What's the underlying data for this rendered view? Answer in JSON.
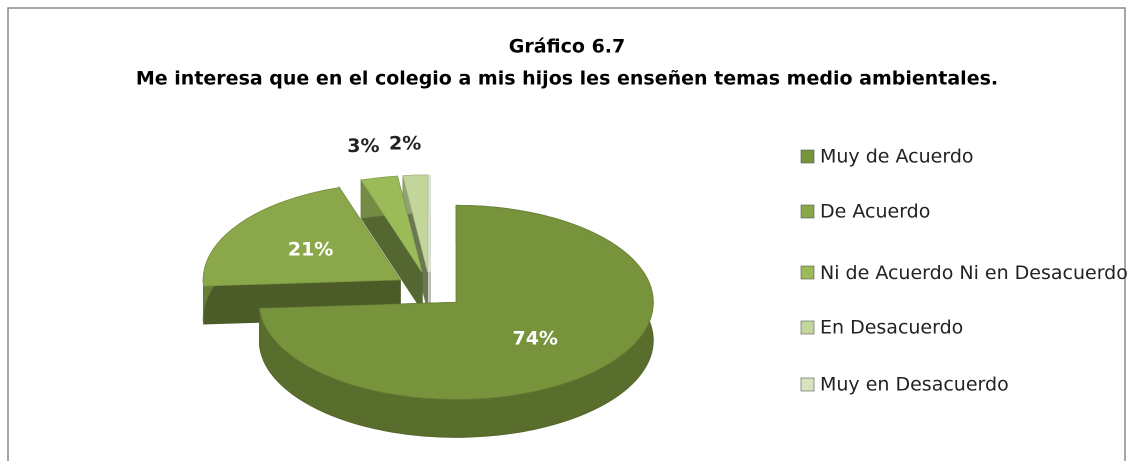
{
  "chart_data": {
    "type": "pie",
    "title": "Gráfico 6.7",
    "subtitle": "Me interesa que en el colegio a mis hijos les enseñen temas medio ambientales.",
    "categories": [
      "Muy de Acuerdo",
      "De Acuerdo",
      "Ni de Acuerdo Ni en Desacuerdo",
      "En Desacuerdo",
      "Muy en Desacuerdo"
    ],
    "values": [
      74,
      21,
      3,
      2,
      0
    ],
    "value_labels": [
      "74%",
      "21%",
      "3%",
      "2%",
      null
    ],
    "colors": [
      "#77933c",
      "#8aa84a",
      "#9bbb59",
      "#c3d69b",
      "#d7e4bd"
    ],
    "legend": "right"
  }
}
